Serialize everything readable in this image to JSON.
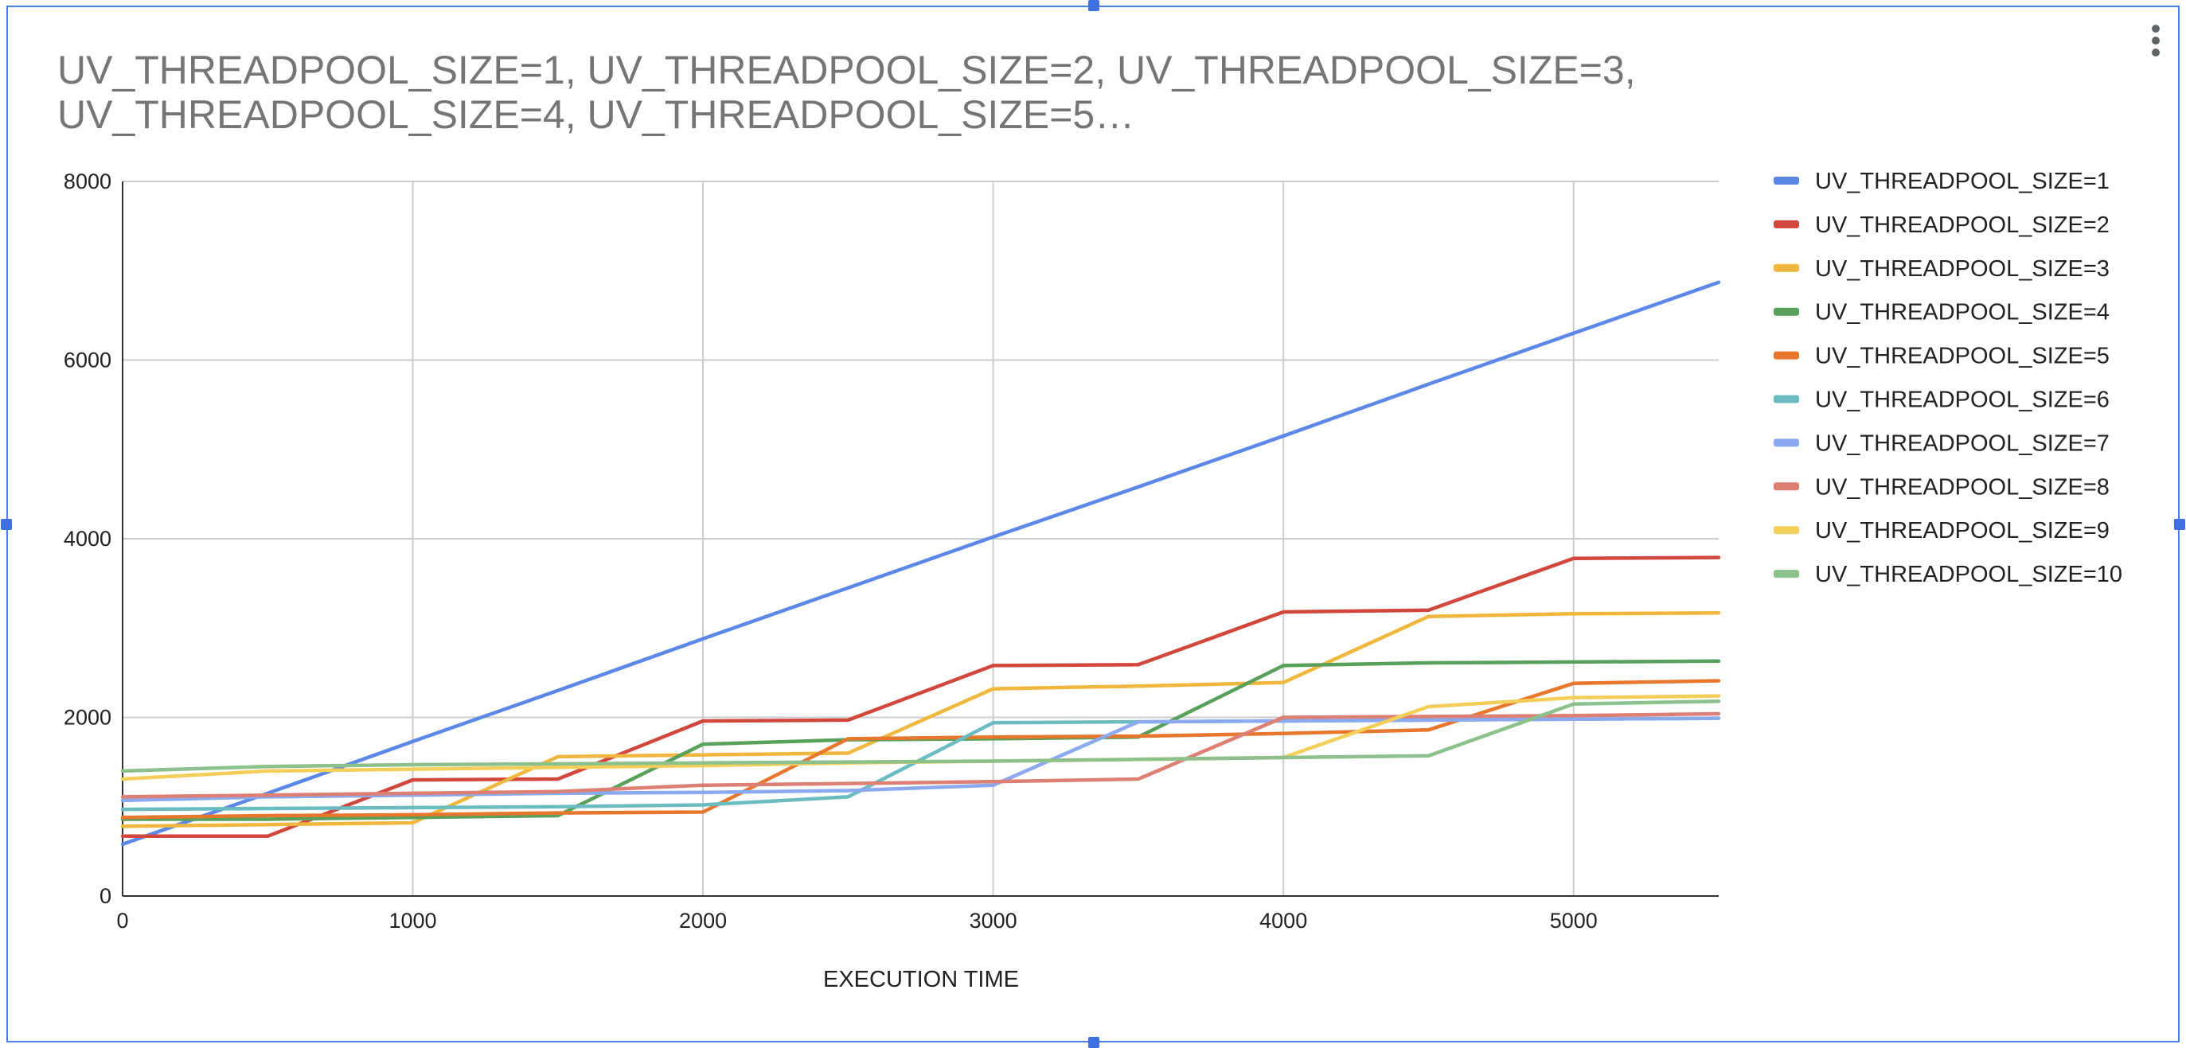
{
  "chart_data": {
    "type": "line",
    "title": "UV_THREADPOOL_SIZE=1, UV_THREADPOOL_SIZE=2, UV_THREADPOOL_SIZE=3, UV_THREADPOOL_SIZE=4, UV_THREADPOOL_SIZE=5…",
    "xlabel": "EXECUTION TIME",
    "ylabel": "",
    "xlim": [
      0,
      5500
    ],
    "ylim": [
      0,
      8000
    ],
    "x_ticks": [
      "0",
      "1000",
      "2000",
      "3000",
      "4000",
      "5000"
    ],
    "y_ticks": [
      "0",
      "2000",
      "4000",
      "6000",
      "8000"
    ],
    "grid": true,
    "legend_position": "right",
    "x": [
      0,
      500,
      1000,
      1500,
      2000,
      2500,
      3000,
      3500,
      4000,
      4500,
      5000,
      5500
    ],
    "series": [
      {
        "name": "UV_THREADPOOL_SIZE=1",
        "color": "#5b87e6",
        "values": [
          580,
          1150,
          1730,
          2300,
          2880,
          3450,
          4020,
          4580,
          5150,
          5730,
          6300,
          6870
        ]
      },
      {
        "name": "UV_THREADPOOL_SIZE=2",
        "color": "#d2473b",
        "values": [
          670,
          670,
          1300,
          1310,
          1960,
          1970,
          2580,
          2590,
          3180,
          3200,
          3780,
          3790
        ]
      },
      {
        "name": "UV_THREADPOOL_SIZE=3",
        "color": "#efb73e",
        "values": [
          780,
          800,
          820,
          1560,
          1580,
          1600,
          2320,
          2350,
          2390,
          3130,
          3160,
          3170
        ]
      },
      {
        "name": "UV_THREADPOOL_SIZE=4",
        "color": "#59a05a",
        "values": [
          860,
          860,
          880,
          900,
          1700,
          1750,
          1760,
          1780,
          2580,
          2610,
          2620,
          2630
        ]
      },
      {
        "name": "UV_THREADPOOL_SIZE=5",
        "color": "#e8772e",
        "values": [
          880,
          900,
          910,
          930,
          940,
          1760,
          1780,
          1790,
          1820,
          1860,
          2380,
          2410
        ]
      },
      {
        "name": "UV_THREADPOOL_SIZE=6",
        "color": "#6bbcc2",
        "values": [
          970,
          980,
          990,
          1000,
          1020,
          1110,
          1940,
          1950,
          1960,
          1970,
          1980,
          1990
        ]
      },
      {
        "name": "UV_THREADPOOL_SIZE=7",
        "color": "#8ba9ef",
        "values": [
          1070,
          1110,
          1130,
          1150,
          1160,
          1180,
          1240,
          1950,
          1960,
          1970,
          1980,
          1990
        ]
      },
      {
        "name": "UV_THREADPOOL_SIZE=8",
        "color": "#de7f74",
        "values": [
          1110,
          1130,
          1150,
          1170,
          1240,
          1260,
          1280,
          1310,
          2000,
          2010,
          2020,
          2040
        ]
      },
      {
        "name": "UV_THREADPOOL_SIZE=9",
        "color": "#f3cf5a",
        "values": [
          1310,
          1400,
          1420,
          1440,
          1460,
          1490,
          1510,
          1530,
          1550,
          2120,
          2220,
          2240
        ]
      },
      {
        "name": "UV_THREADPOOL_SIZE=10",
        "color": "#8cc18c",
        "values": [
          1400,
          1450,
          1470,
          1480,
          1490,
          1500,
          1510,
          1530,
          1550,
          1570,
          2150,
          2180
        ]
      }
    ]
  }
}
